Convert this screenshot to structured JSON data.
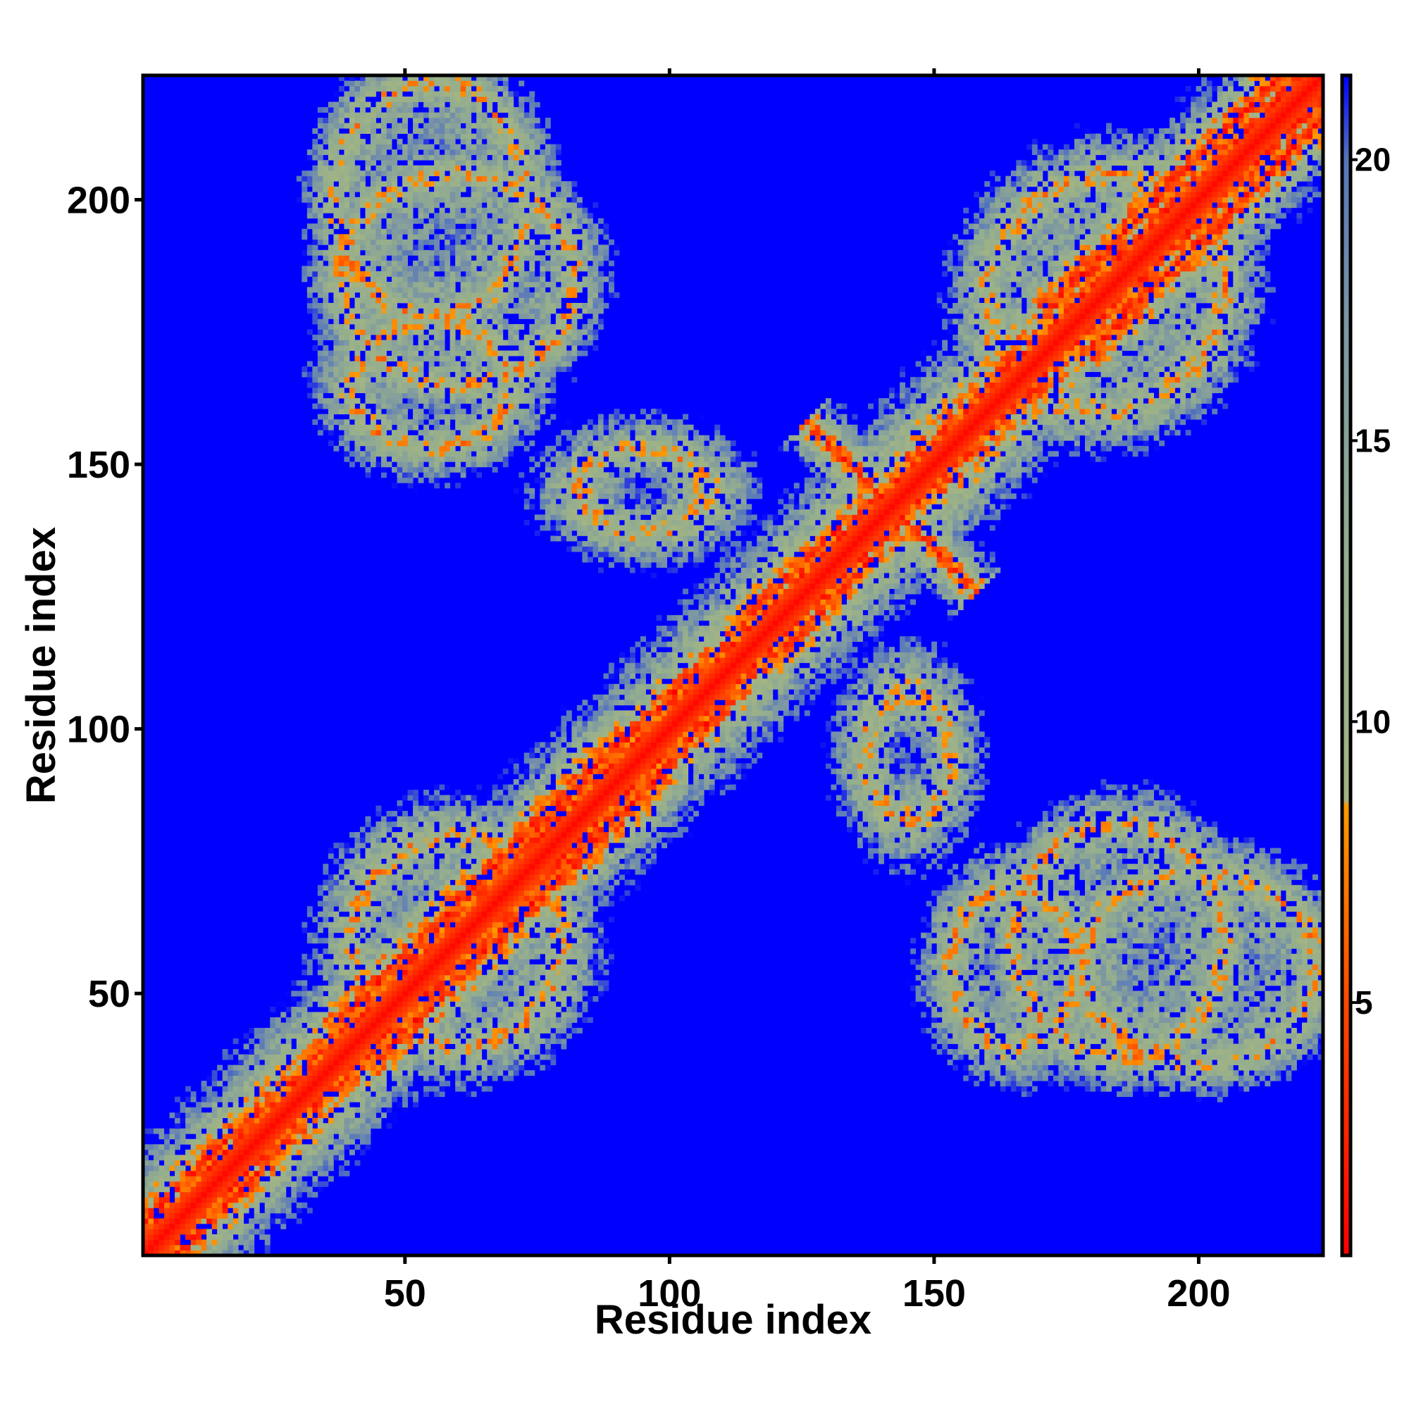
{
  "chart_data": {
    "type": "heatmap",
    "title": "",
    "xlabel": "Residue index",
    "ylabel": "Residue index",
    "n_residues": 223,
    "xlim": [
      1,
      223
    ],
    "ylim": [
      1,
      223
    ],
    "x_ticks": [
      50,
      100,
      150,
      200
    ],
    "y_ticks": [
      50,
      100,
      150,
      200
    ],
    "x_tick_labels": [
      "50",
      "100",
      "150",
      "200"
    ],
    "y_tick_labels": [
      "50",
      "100",
      "150",
      "200"
    ],
    "colorbar": {
      "range": [
        0.5,
        21.5
      ],
      "ticks": [
        5,
        10,
        15,
        20
      ],
      "tick_labels": [
        "5",
        "10",
        "15",
        "20"
      ],
      "stops": [
        {
          "value": 0.5,
          "color": "#ff0000"
        },
        {
          "value": 5,
          "color": "#ff4a00"
        },
        {
          "value": 8.5,
          "color": "#ff9900"
        },
        {
          "value": 8.6,
          "color": "#a3b483"
        },
        {
          "value": 13,
          "color": "#93ad8f"
        },
        {
          "value": 17,
          "color": "#7d97a3"
        },
        {
          "value": 20,
          "color": "#5676bb"
        },
        {
          "value": 21.5,
          "color": "#0000ff"
        }
      ],
      "saturation_value": 21.5
    },
    "description": "Residue-residue distance map (values in distance units, saturated above ~21). Symmetric about the diagonal.",
    "features": [
      {
        "type": "diagonal",
        "width": 3.5
      },
      {
        "type": "helix_band",
        "start": 1,
        "end": 25,
        "offset": 6,
        "width": 6
      },
      {
        "type": "helix_band",
        "start": 40,
        "end": 95,
        "offset": 7,
        "width": 8
      },
      {
        "type": "helix_band",
        "start": 95,
        "end": 135,
        "offset": 6,
        "width": 6
      },
      {
        "type": "helix_band",
        "start": 175,
        "end": 223,
        "offset": 8,
        "width": 8
      },
      {
        "type": "antidiagonal_cross",
        "center": [
          142,
          142
        ],
        "half_length": 16,
        "width": 3
      },
      {
        "type": "loop",
        "center": [
          60,
          185
        ],
        "radius_x": 22,
        "radius_y": 20,
        "width": 4
      },
      {
        "type": "loop",
        "center": [
          185,
          60
        ],
        "radius_x": 20,
        "radius_y": 22,
        "width": 4
      },
      {
        "type": "loop",
        "center": [
          55,
          165
        ],
        "radius_x": 15,
        "radius_y": 12,
        "width": 4
      },
      {
        "type": "loop",
        "center": [
          165,
          55
        ],
        "radius_x": 12,
        "radius_y": 15,
        "width": 4
      },
      {
        "type": "loop",
        "center": [
          95,
          145
        ],
        "radius_x": 12,
        "radius_y": 8,
        "width": 4
      },
      {
        "type": "loop",
        "center": [
          145,
          95
        ],
        "radius_x": 8,
        "radius_y": 12,
        "width": 4
      },
      {
        "type": "loop",
        "center": [
          60,
          60
        ],
        "radius_x": 20,
        "radius_y": 20,
        "width": 5
      },
      {
        "type": "loop",
        "center": [
          180,
          185
        ],
        "radius_x": 25,
        "radius_y": 25,
        "width": 5
      },
      {
        "type": "loop",
        "center": [
          200,
          55
        ],
        "radius_x": 22,
        "radius_y": 18,
        "width": 4
      },
      {
        "type": "loop",
        "center": [
          55,
          200
        ],
        "radius_x": 18,
        "radius_y": 22,
        "width": 4
      }
    ]
  }
}
